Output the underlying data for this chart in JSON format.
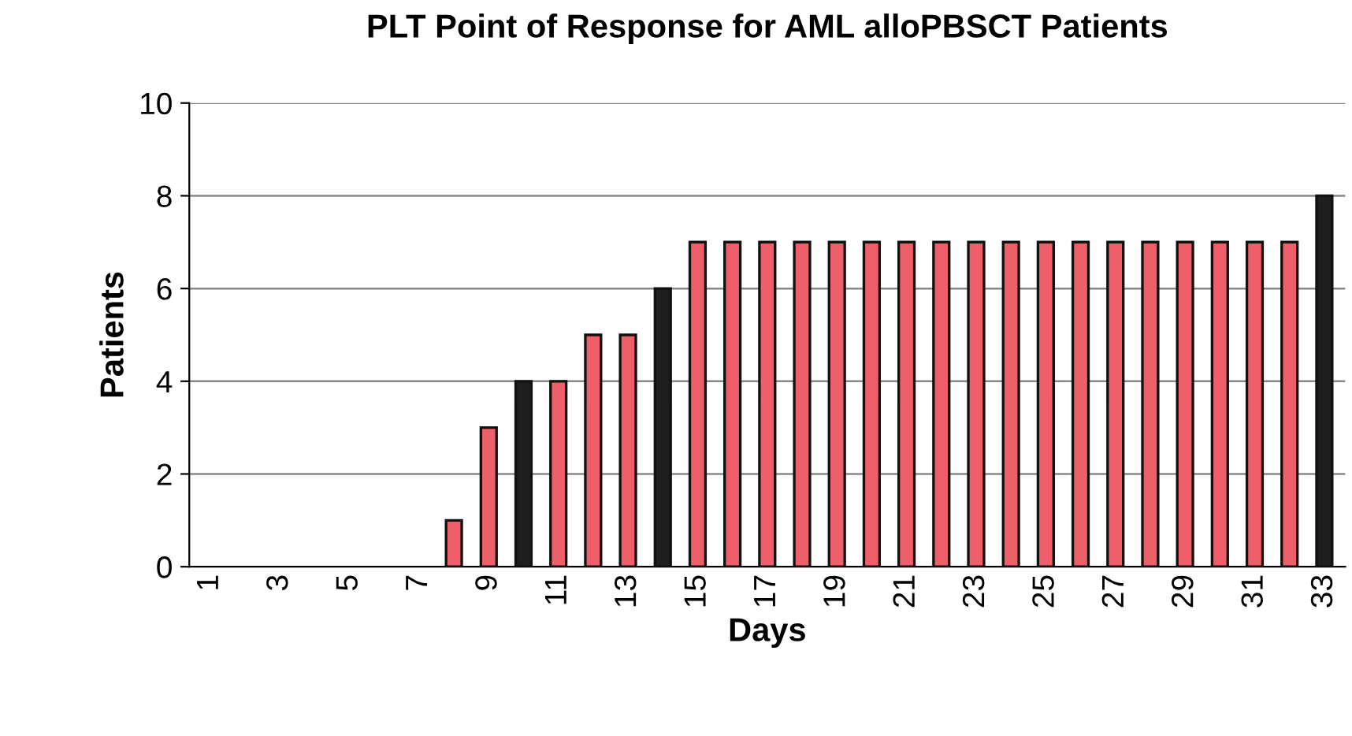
{
  "chart_data": {
    "type": "bar",
    "title": "PLT Point of Response for AML alloPBSCT Patients",
    "xlabel": "Days",
    "ylabel": "Patients",
    "categories": [
      "1",
      null,
      "3",
      null,
      "5",
      null,
      "7",
      null,
      "9",
      null,
      "11",
      null,
      "13",
      null,
      "15",
      null,
      "17",
      null,
      "19",
      null,
      "21",
      null,
      "23",
      null,
      "25",
      null,
      "27",
      null,
      "29",
      null,
      "31",
      null,
      "33"
    ],
    "values": [
      0,
      0,
      0,
      0,
      0,
      0,
      0,
      1,
      3,
      4,
      4,
      5,
      5,
      6,
      7,
      7,
      7,
      7,
      7,
      7,
      7,
      7,
      7,
      7,
      7,
      7,
      7,
      7,
      7,
      7,
      7,
      7,
      8
    ],
    "colors": [
      "#ee5f6a",
      "#ee5f6a",
      "#ee5f6a",
      "#ee5f6a",
      "#ee5f6a",
      "#ee5f6a",
      "#ee5f6a",
      "#ee5f6a",
      "#ee5f6a",
      "#1e1e1e",
      "#ee5f6a",
      "#ee5f6a",
      "#ee5f6a",
      "#1e1e1e",
      "#ee5f6a",
      "#ee5f6a",
      "#ee5f6a",
      "#ee5f6a",
      "#ee5f6a",
      "#ee5f6a",
      "#ee5f6a",
      "#ee5f6a",
      "#ee5f6a",
      "#ee5f6a",
      "#ee5f6a",
      "#ee5f6a",
      "#ee5f6a",
      "#ee5f6a",
      "#ee5f6a",
      "#ee5f6a",
      "#ee5f6a",
      "#ee5f6a",
      "#1e1e1e"
    ],
    "ylim": [
      0,
      10
    ],
    "yticks": [
      0,
      2,
      4,
      6,
      8,
      10
    ],
    "grid": "y",
    "legend": false
  }
}
